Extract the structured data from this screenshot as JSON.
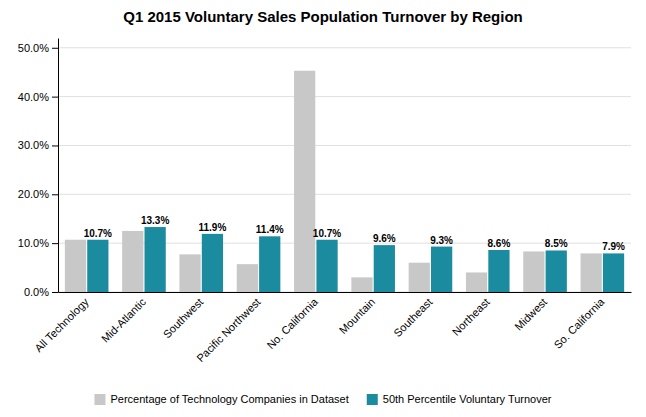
{
  "chart_data": {
    "type": "bar",
    "title": "Q1 2015 Voluntary Sales Population Turnover by Region",
    "categories": [
      "All Technology",
      "Mid-Atlantic",
      "Southwest",
      "Pacific Northwest",
      "No. California",
      "Mountain",
      "Southeast",
      "Northeast",
      "Midwest",
      "So. California"
    ],
    "series": [
      {
        "name": "Percentage of Technology Companies in Dataset",
        "color": "#C8C8C8",
        "values": [
          0.107,
          0.125,
          0.077,
          0.057,
          0.453,
          0.03,
          0.06,
          0.04,
          0.083,
          0.079
        ]
      },
      {
        "name": "50th Percentile Voluntary Turnover",
        "color": "#1B8CA0",
        "values": [
          0.107,
          0.133,
          0.119,
          0.114,
          0.107,
          0.096,
          0.093,
          0.086,
          0.085,
          0.079
        ],
        "data_labels": true,
        "value_labels": [
          "10.7%",
          "13.3%",
          "11.9%",
          "11.4%",
          "10.7%",
          "9.6%",
          "9.3%",
          "8.6%",
          "8.5%",
          "7.9%"
        ]
      }
    ],
    "ylim": [
      0,
      0.52
    ],
    "yticks": [
      {
        "value": 0.0,
        "label": "0.0%"
      },
      {
        "value": 0.1,
        "label": "10.0%"
      },
      {
        "value": 0.2,
        "label": "20.0%"
      },
      {
        "value": 0.3,
        "label": "30.0%"
      },
      {
        "value": 0.4,
        "label": "40.0%"
      },
      {
        "value": 0.5,
        "label": "50.0%"
      }
    ],
    "grid": true,
    "legend": "bottom"
  }
}
